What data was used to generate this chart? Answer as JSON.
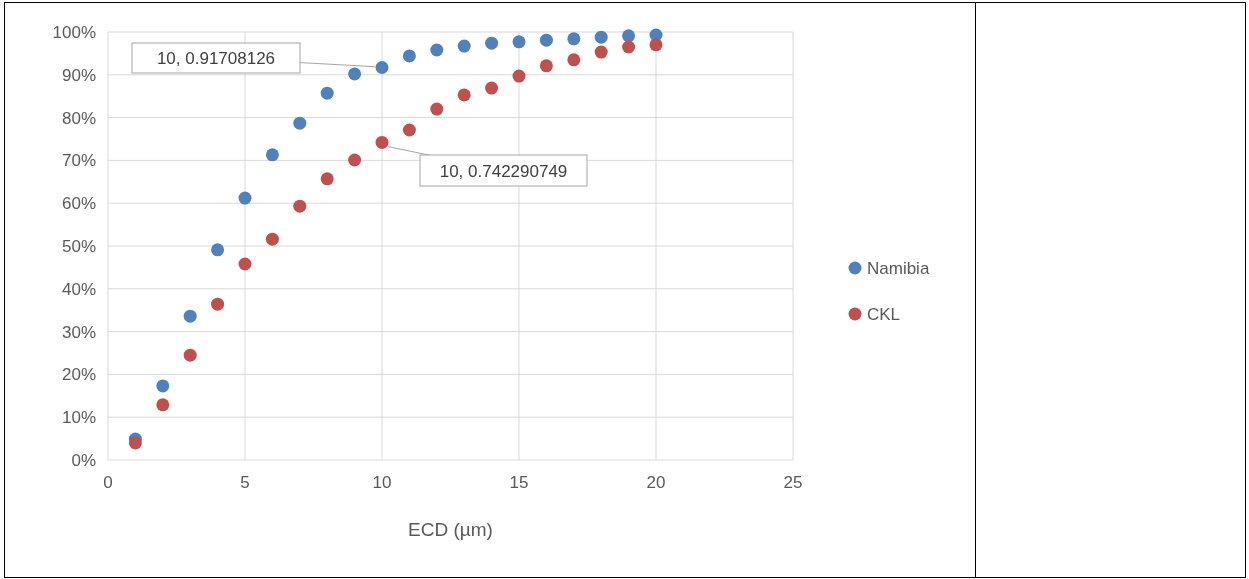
{
  "chart_data": {
    "type": "scatter",
    "xlabel": "ECD (µm)",
    "x": [
      1,
      2,
      3,
      4,
      5,
      6,
      7,
      8,
      9,
      10,
      11,
      12,
      13,
      14,
      15,
      16,
      17,
      18,
      19,
      20
    ],
    "series": [
      {
        "name": "Namibia",
        "color": "#4f81bd",
        "values": [
          0.049,
          0.173,
          0.336,
          0.491,
          0.612,
          0.713,
          0.787,
          0.857,
          0.902,
          0.917,
          0.944,
          0.958,
          0.967,
          0.974,
          0.977,
          0.981,
          0.984,
          0.988,
          0.991,
          0.993
        ]
      },
      {
        "name": "CKL",
        "color": "#c0504d",
        "values": [
          0.04,
          0.129,
          0.245,
          0.364,
          0.458,
          0.516,
          0.593,
          0.657,
          0.701,
          0.742,
          0.771,
          0.82,
          0.853,
          0.869,
          0.897,
          0.921,
          0.935,
          0.953,
          0.965,
          0.97
        ]
      }
    ],
    "annotations": [
      {
        "text": "10, 0.91708126",
        "x": 10,
        "y": 0.917
      },
      {
        "text": "10, 0.742290749",
        "x": 10,
        "y": 0.742
      }
    ],
    "xlim": [
      0,
      25
    ],
    "xticks": [
      0,
      5,
      10,
      15,
      20,
      25
    ],
    "ylim": [
      0,
      1
    ],
    "yticks": [
      {
        "value": 0,
        "label": "0%"
      },
      {
        "value": 0.1,
        "label": "10%"
      },
      {
        "value": 0.2,
        "label": "20%"
      },
      {
        "value": 0.3,
        "label": "30%"
      },
      {
        "value": 0.4,
        "label": "40%"
      },
      {
        "value": 0.5,
        "label": "50%"
      },
      {
        "value": 0.6,
        "label": "60%"
      },
      {
        "value": 0.7,
        "label": "70%"
      },
      {
        "value": 0.8,
        "label": "80%"
      },
      {
        "value": 0.9,
        "label": "90%"
      },
      {
        "value": 1,
        "label": "100%"
      }
    ],
    "grid": true,
    "legend": "right",
    "marker": "circle"
  }
}
